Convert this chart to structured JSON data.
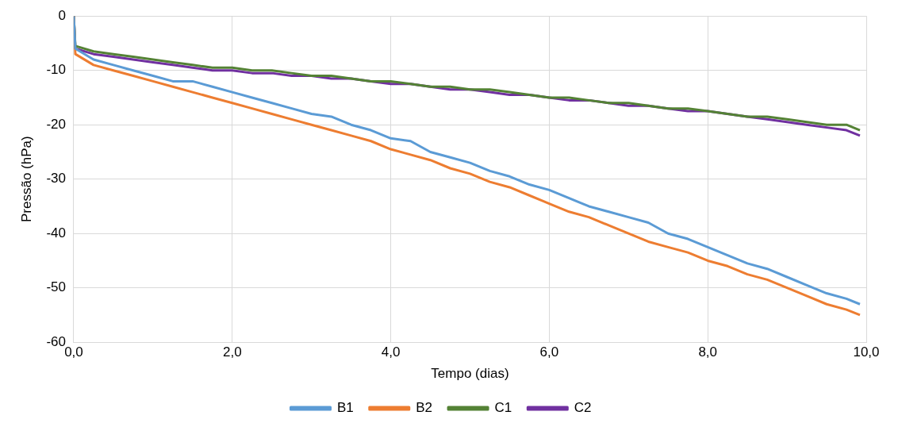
{
  "chart_data": {
    "type": "line",
    "xlabel": "Tempo (dias)",
    "ylabel": "Pressão (hPa)",
    "x": [
      0,
      0.02,
      0.25,
      0.5,
      0.75,
      1,
      1.25,
      1.5,
      1.75,
      2,
      2.25,
      2.5,
      2.75,
      3,
      3.25,
      3.5,
      3.75,
      4,
      4.25,
      4.5,
      4.75,
      5,
      5.25,
      5.5,
      5.75,
      6,
      6.25,
      6.5,
      6.75,
      7,
      7.25,
      7.5,
      7.75,
      8,
      8.25,
      8.5,
      8.75,
      9,
      9.25,
      9.5,
      9.75,
      9.92
    ],
    "xlim": [
      0,
      10
    ],
    "xticks": [
      {
        "value": 0,
        "label": "0,0"
      },
      {
        "value": 2,
        "label": "2,0"
      },
      {
        "value": 4,
        "label": "4,0"
      },
      {
        "value": 6,
        "label": "6,0"
      },
      {
        "value": 8,
        "label": "8,0"
      },
      {
        "value": 10,
        "label": "10,0"
      }
    ],
    "ylim": [
      -60,
      0
    ],
    "yticks": [
      -60,
      -50,
      -40,
      -30,
      -20,
      -10,
      0
    ],
    "grid": true,
    "legend": "bottom",
    "marker": "none",
    "line_style": "solid",
    "series": [
      {
        "name": "B1",
        "color": "#5b9bd5",
        "values": [
          0,
          -6,
          -8,
          -9,
          -10,
          -11,
          -12,
          -12,
          -13,
          -14,
          -15,
          -16,
          -17,
          -18,
          -18.5,
          -20,
          -21,
          -22.5,
          -23,
          -25,
          -26,
          -27,
          -28.5,
          -29.5,
          -31,
          -32,
          -33.5,
          -35,
          -36,
          -37,
          -38,
          -40,
          -41,
          -42.5,
          -44,
          -45.5,
          -46.5,
          -48,
          -49.5,
          -51,
          -52,
          -53
        ]
      },
      {
        "name": "B2",
        "color": "#ed7d31",
        "values": [
          0,
          -7,
          -9,
          -10,
          -11,
          -12,
          -13,
          -14,
          -15,
          -16,
          -17,
          -18,
          -19,
          -20,
          -21,
          -22,
          -23,
          -24.5,
          -25.5,
          -26.5,
          -28,
          -29,
          -30.5,
          -31.5,
          -33,
          -34.5,
          -36,
          -37,
          -38.5,
          -40,
          -41.5,
          -42.5,
          -43.5,
          -45,
          -46,
          -47.5,
          -48.5,
          -50,
          -51.5,
          -53,
          -54,
          -55
        ]
      },
      {
        "name": "C1",
        "color": "#548235",
        "values": [
          0,
          -5.5,
          -6.5,
          -7,
          -7.5,
          -8,
          -8.5,
          -9,
          -9.5,
          -9.5,
          -10,
          -10,
          -10.5,
          -11,
          -11,
          -11.5,
          -12,
          -12,
          -12.5,
          -13,
          -13,
          -13.5,
          -13.5,
          -14,
          -14.5,
          -15,
          -15,
          -15.5,
          -16,
          -16,
          -16.5,
          -17,
          -17,
          -17.5,
          -18,
          -18.5,
          -18.5,
          -19,
          -19.5,
          -20,
          -20,
          -21
        ]
      },
      {
        "name": "C2",
        "color": "#7030a0",
        "values": [
          0,
          -6,
          -7,
          -7.5,
          -8,
          -8.5,
          -9,
          -9.5,
          -10,
          -10,
          -10.5,
          -10.5,
          -11,
          -11,
          -11.5,
          -11.5,
          -12,
          -12.5,
          -12.5,
          -13,
          -13.5,
          -13.5,
          -14,
          -14.5,
          -14.5,
          -15,
          -15.5,
          -15.5,
          -16,
          -16.5,
          -16.5,
          -17,
          -17.5,
          -17.5,
          -18,
          -18.5,
          -19,
          -19.5,
          -20,
          -20.5,
          -21,
          -22
        ]
      }
    ]
  }
}
